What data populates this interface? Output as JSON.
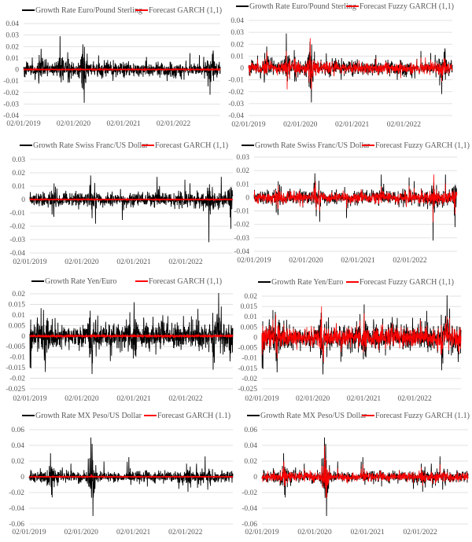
{
  "colors": {
    "growth": "#000000",
    "forecast": "#ff0000",
    "grid": "#d9d9d9",
    "text": "#595959"
  },
  "chart_data": [
    {
      "type": "line",
      "legend": [
        "Growth Rate Euro/Pound Sterling",
        "Forecast GARCH (1,1)"
      ],
      "forecast_kind": "garch",
      "legend_position": "top",
      "grid": true,
      "ylim": [
        -0.04,
        0.04
      ],
      "y_ticks": [
        "-0.04",
        "-0.03",
        "-0.02",
        "-0.01",
        "0",
        "0.01",
        "0.02",
        "0.03",
        "0.04"
      ],
      "x_ticks": [
        "02/01/2019",
        "02/01/2020",
        "02/01/2021",
        "02/01/2022"
      ],
      "x_range": [
        "2019-01-02",
        "2022-12-10"
      ],
      "typical_amplitude": 0.005,
      "spikes": [
        [
          "2019-05-10",
          0.018
        ],
        [
          "2019-09-25",
          0.029
        ],
        [
          "2019-11-20",
          0.015
        ],
        [
          "2020-03-10",
          0.022
        ],
        [
          "2020-03-20",
          -0.029
        ],
        [
          "2020-03-05",
          -0.016
        ],
        [
          "2022-09-26",
          -0.022
        ],
        [
          "2022-10-20",
          0.013
        ]
      ],
      "forecast_spikes": []
    },
    {
      "type": "line",
      "legend": [
        "Growth Rate Euro/Pound Sterling",
        "Forecast Fuzzy GARCH (1,1)"
      ],
      "forecast_kind": "fuzzy",
      "legend_position": "top",
      "grid": true,
      "ylim": [
        -0.04,
        0.04
      ],
      "y_ticks": [
        "-0.04",
        "-0.03",
        "-0.02",
        "-0.01",
        "0",
        "0.01",
        "0.02",
        "0.03",
        "0.04"
      ],
      "x_ticks": [
        "02/01/2019",
        "02/01/2020",
        "02/01/2021",
        "02/01/2022"
      ],
      "x_range": [
        "2019-01-02",
        "2022-12-10"
      ],
      "typical_amplitude": 0.005,
      "spikes": [
        [
          "2019-05-10",
          0.018
        ],
        [
          "2019-09-25",
          0.029
        ],
        [
          "2019-11-20",
          0.015
        ],
        [
          "2020-03-10",
          0.022
        ],
        [
          "2020-03-20",
          -0.029
        ],
        [
          "2020-03-05",
          -0.016
        ],
        [
          "2022-09-26",
          -0.022
        ],
        [
          "2022-10-20",
          0.013
        ]
      ],
      "forecast_spikes": [
        [
          "2019-10-01",
          -0.018
        ],
        [
          "2020-03-12",
          0.025
        ],
        [
          "2020-03-22",
          -0.018
        ],
        [
          "2019-05-12",
          0.014
        ]
      ]
    },
    {
      "type": "line",
      "legend": [
        "Growth Rate Swiss Franc/US Dollar",
        "Forecast GARCH (1,1)"
      ],
      "forecast_kind": "garch",
      "legend_position": "top",
      "grid": true,
      "ylim": [
        -0.04,
        0.03
      ],
      "y_ticks": [
        "-0.04",
        "-0.03",
        "-0.02",
        "-0.01",
        "0",
        "0.01",
        "0.02",
        "0.03"
      ],
      "x_ticks": [
        "02/01/2019",
        "02/01/2020",
        "02/01/2021",
        "02/01/2022"
      ],
      "x_range": [
        "2019-01-02",
        "2022-11-30"
      ],
      "typical_amplitude": 0.004,
      "spikes": [
        [
          "2020-03-05",
          0.018
        ],
        [
          "2020-03-15",
          -0.014
        ],
        [
          "2021-06-15",
          0.017
        ],
        [
          "2022-06-15",
          -0.032
        ],
        [
          "2022-09-10",
          0.017
        ],
        [
          "2022-11-15",
          -0.022
        ],
        [
          "2019-06-20",
          -0.013
        ]
      ],
      "forecast_spikes": []
    },
    {
      "type": "line",
      "legend": [
        "Growth Rate Swiss Franc/US Dollar",
        "Forecast Fuzzy GARCH (1,1)"
      ],
      "forecast_kind": "fuzzy",
      "legend_position": "top",
      "grid": true,
      "ylim": [
        -0.04,
        0.03
      ],
      "y_ticks": [
        "-0.04",
        "-0.03",
        "-0.02",
        "-0.01",
        "0",
        "0.01",
        "0.02",
        "0.03"
      ],
      "x_ticks": [
        "02/01/2019",
        "02/01/2020",
        "02/01/2021",
        "02/01/2022"
      ],
      "x_range": [
        "2019-01-02",
        "2022-11-30"
      ],
      "typical_amplitude": 0.004,
      "spikes": [
        [
          "2020-03-05",
          0.018
        ],
        [
          "2020-03-15",
          -0.014
        ],
        [
          "2021-06-15",
          0.017
        ],
        [
          "2022-06-15",
          -0.032
        ],
        [
          "2022-09-10",
          0.017
        ],
        [
          "2022-11-15",
          -0.022
        ],
        [
          "2019-06-20",
          -0.013
        ]
      ],
      "forecast_spikes": [
        [
          "2022-06-20",
          0.017
        ],
        [
          "2020-03-08",
          0.012
        ]
      ]
    },
    {
      "type": "line",
      "legend": [
        "Growth Rate Yen/Euro",
        "Forecast GARCH (1,1)"
      ],
      "forecast_kind": "garch",
      "legend_position": "top",
      "grid": true,
      "ylim": [
        -0.025,
        0.02
      ],
      "y_ticks": [
        "-0.025",
        "-0.02",
        "-0.015",
        "-0.01",
        "-0.005",
        "0",
        "0.005",
        "0.01",
        "0.015",
        "0.02"
      ],
      "x_ticks": [
        "02/01/2019",
        "02/01/2020",
        "02/01/2021",
        "02/01/2022"
      ],
      "x_range": [
        "2019-01-02",
        "2022-11-30"
      ],
      "typical_amplitude": 0.005,
      "spikes": [
        [
          "2019-01-03",
          -0.015
        ],
        [
          "2019-04-20",
          -0.017
        ],
        [
          "2020-03-15",
          -0.018
        ],
        [
          "2020-03-01",
          0.012
        ],
        [
          "2021-01-05",
          0.016
        ],
        [
          "2022-07-15",
          -0.016
        ],
        [
          "2022-09-10",
          0.014
        ],
        [
          "2022-11-10",
          -0.012
        ]
      ],
      "forecast_spikes": []
    },
    {
      "type": "line",
      "legend": [
        "Growth Rate Yen/Euro",
        "Forecast Fuzzy GARCH (1,1)"
      ],
      "forecast_kind": "fuzzy",
      "legend_position": "top",
      "grid": true,
      "ylim": [
        -0.025,
        0.02
      ],
      "y_ticks": [
        "-0.025",
        "-0.02",
        "-0.015",
        "-0.01",
        "-0.005",
        "0",
        "0.005",
        "0.01",
        "0.015",
        "0.02"
      ],
      "x_ticks": [
        "02/01/2019",
        "02/01/2020",
        "02/01/2021",
        "02/01/2022"
      ],
      "x_range": [
        "2019-01-02",
        "2022-11-30"
      ],
      "typical_amplitude": 0.005,
      "spikes": [
        [
          "2019-01-03",
          -0.015
        ],
        [
          "2019-04-20",
          -0.017
        ],
        [
          "2020-03-15",
          -0.018
        ],
        [
          "2020-03-01",
          0.012
        ],
        [
          "2021-01-05",
          0.016
        ],
        [
          "2022-07-15",
          -0.016
        ],
        [
          "2022-09-10",
          0.014
        ],
        [
          "2022-11-10",
          -0.012
        ]
      ],
      "forecast_spikes": [
        [
          "2020-03-05",
          0.015
        ],
        [
          "2019-04-10",
          0.011
        ],
        [
          "2020-03-18",
          -0.012
        ]
      ]
    },
    {
      "type": "line",
      "legend": [
        "Growth Rate MX Peso/US Dollar",
        "Forecast GARCH (1.1)"
      ],
      "forecast_kind": "garch",
      "legend_position": "top",
      "grid": true,
      "ylim": [
        -0.06,
        0.06
      ],
      "y_ticks": [
        "-0.06",
        "-0.04",
        "-0.02",
        "0",
        "0.02",
        "0.04",
        "0.06"
      ],
      "x_ticks": [
        "02/01/2019",
        "02/01/2020",
        "02/01/2021",
        "02/01/2022"
      ],
      "x_range": [
        "2019-01-02",
        "2022-11-30"
      ],
      "typical_amplitude": 0.006,
      "spikes": [
        [
          "2019-06-01",
          0.03
        ],
        [
          "2019-06-08",
          -0.023
        ],
        [
          "2020-03-10",
          0.05
        ],
        [
          "2020-03-18",
          0.042
        ],
        [
          "2020-03-25",
          -0.05
        ],
        [
          "2020-12-01",
          0.025
        ],
        [
          "2022-05-20",
          0.026
        ],
        [
          "2022-01-20",
          -0.019
        ]
      ],
      "forecast_spikes": [
        [
          "2020-03-15",
          0.003
        ]
      ]
    },
    {
      "type": "line",
      "legend": [
        "Growth Rate MX Peso/US Dollar",
        "Forecast Fuzzy GARCH (1.1)"
      ],
      "forecast_kind": "fuzzy",
      "legend_position": "top",
      "grid": true,
      "ylim": [
        -0.06,
        0.06
      ],
      "y_ticks": [
        "-0.06",
        "-0.04",
        "-0.02",
        "0",
        "0.02",
        "0.04",
        "0.06"
      ],
      "x_ticks": [
        "02/01/2019",
        "02/01/2020",
        "02/01/2021",
        "02/01/2022"
      ],
      "x_range": [
        "2019-01-02",
        "2022-11-30"
      ],
      "typical_amplitude": 0.006,
      "spikes": [
        [
          "2019-06-01",
          0.03
        ],
        [
          "2019-06-08",
          -0.023
        ],
        [
          "2020-03-10",
          0.05
        ],
        [
          "2020-03-18",
          0.042
        ],
        [
          "2020-03-25",
          -0.05
        ],
        [
          "2020-12-01",
          0.025
        ],
        [
          "2022-05-20",
          0.026
        ],
        [
          "2022-01-20",
          -0.019
        ]
      ],
      "forecast_spikes": [
        [
          "2020-03-12",
          0.04
        ],
        [
          "2020-03-22",
          -0.027
        ],
        [
          "2019-06-03",
          0.02
        ]
      ]
    }
  ]
}
